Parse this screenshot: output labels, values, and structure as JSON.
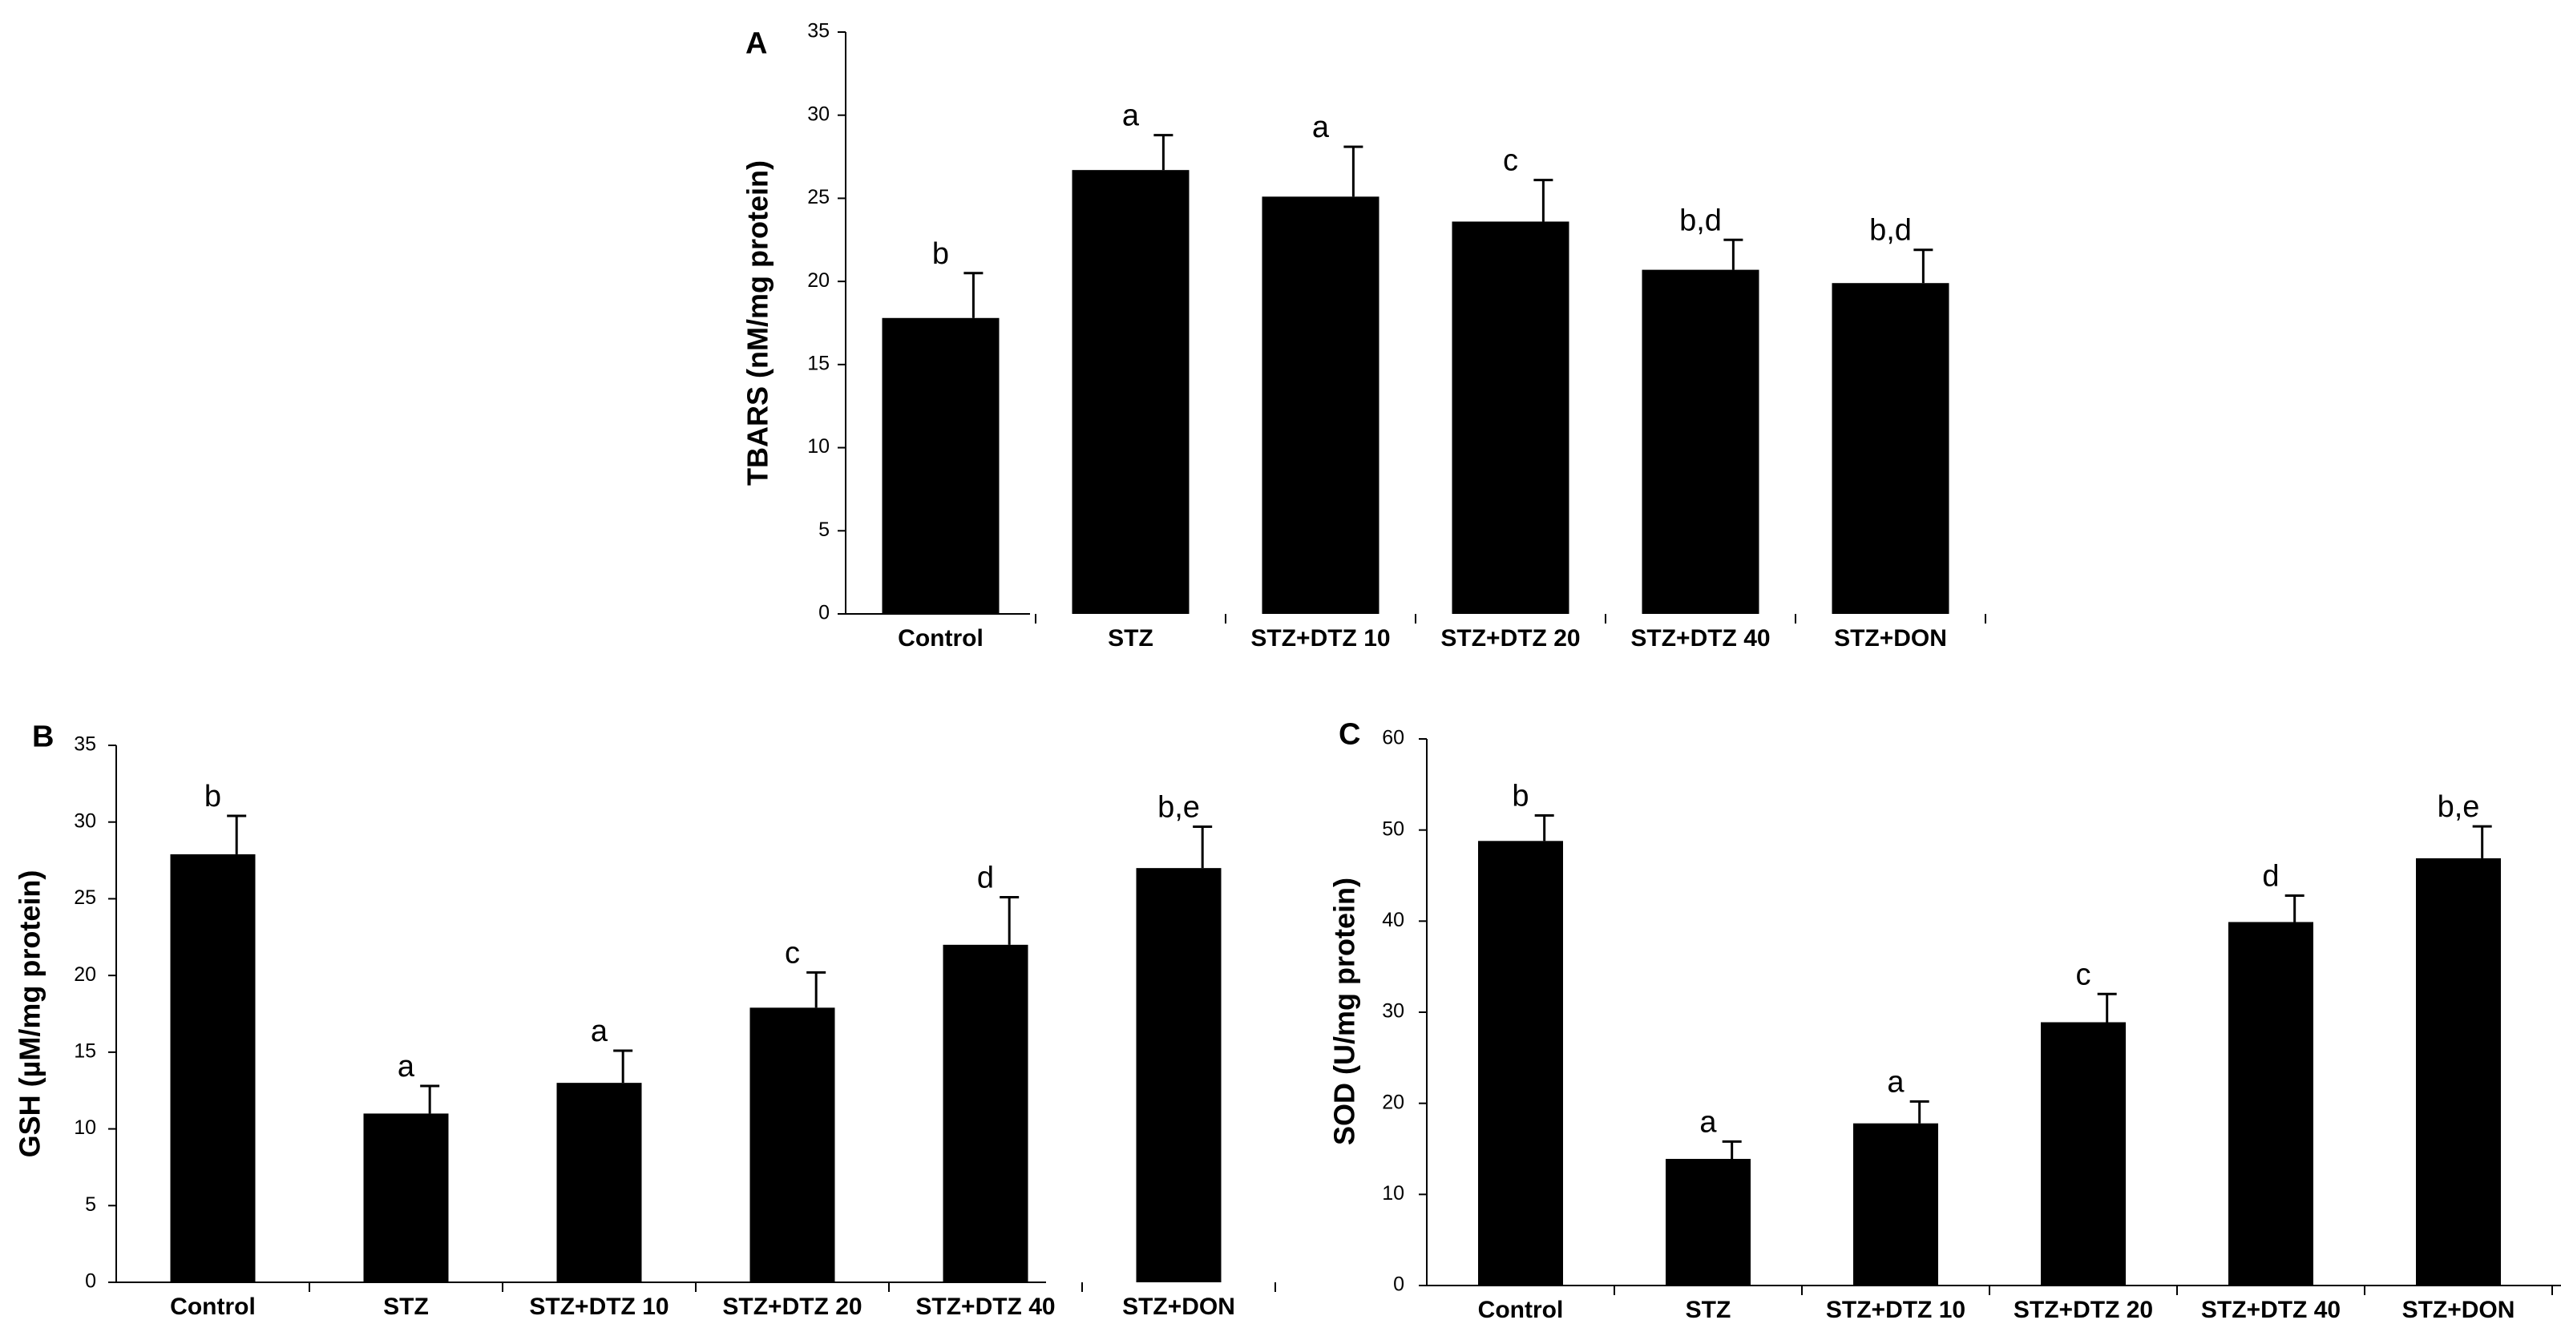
{
  "chart_data": [
    {
      "type": "bar",
      "panel_label": "A",
      "ylabel": "TBARS (nM/mg protein)",
      "ylim": [
        0,
        35
      ],
      "yticks": [
        0,
        5,
        10,
        15,
        20,
        25,
        30,
        35
      ],
      "categories": [
        "Control",
        "STZ",
        "STZ+DTZ  10",
        "STZ+DTZ  20",
        "STZ+DTZ  40",
        "STZ+DON"
      ],
      "values": [
        17.8,
        26.7,
        25.1,
        23.6,
        20.7,
        19.9
      ],
      "errors": [
        2.7,
        2.1,
        3.0,
        2.5,
        1.8,
        2.0
      ],
      "annotations": [
        "b",
        "a",
        "a",
        "c",
        "b,d",
        "b,d"
      ],
      "bar_color": "#000000"
    },
    {
      "type": "bar",
      "panel_label": "B",
      "ylabel": "GSH (µM/mg protein)",
      "ylim": [
        0,
        35
      ],
      "yticks": [
        0,
        5,
        10,
        15,
        20,
        25,
        30,
        35
      ],
      "categories": [
        "Control",
        "STZ",
        "STZ+DTZ  10",
        "STZ+DTZ  20",
        "STZ+DTZ  40",
        "STZ+DON"
      ],
      "values": [
        27.9,
        11.0,
        13.0,
        17.9,
        22.0,
        27.0
      ],
      "errors": [
        2.5,
        1.8,
        2.1,
        2.3,
        3.1,
        2.7
      ],
      "annotations": [
        "b",
        "a",
        "a",
        "c",
        "d",
        "b,e"
      ],
      "bar_color": "#000000"
    },
    {
      "type": "bar",
      "panel_label": "C",
      "ylabel": "SOD (U/mg protein)",
      "ylim": [
        0,
        60
      ],
      "yticks": [
        0,
        10,
        20,
        30,
        40,
        50,
        60
      ],
      "categories": [
        "Control",
        "STZ",
        "STZ+DTZ  10",
        "STZ+DTZ  20",
        "STZ+DTZ  40",
        "STZ+DON"
      ],
      "values": [
        48.8,
        13.9,
        17.8,
        28.9,
        39.9,
        46.9
      ],
      "errors": [
        2.8,
        1.9,
        2.4,
        3.1,
        2.9,
        3.5
      ],
      "annotations": [
        "b",
        "a",
        "a",
        "c",
        "d",
        "b,e"
      ],
      "bar_color": "#000000"
    }
  ]
}
